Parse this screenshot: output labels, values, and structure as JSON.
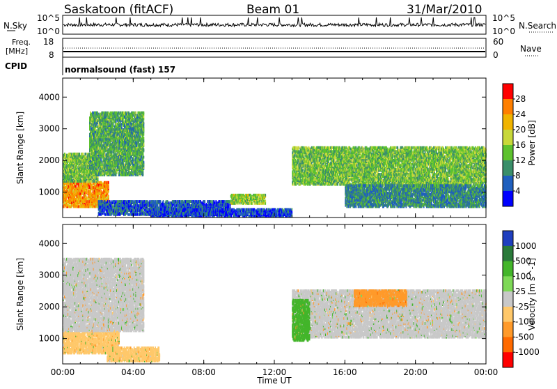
{
  "header": {
    "station": "Saskatoon (fitACF)",
    "beam": "Beam 01",
    "date": "31/Mar/2010"
  },
  "nsky_panel": {
    "left_label": "N.Sky",
    "left_ticks": [
      "10^5",
      "10^0"
    ],
    "right_label": "N.Search",
    "right_ticks": [
      "10^5",
      "10^0"
    ]
  },
  "freq_panel": {
    "left_label_1": "Freq.",
    "left_label_2": "[MHz]",
    "left_ticks": [
      "18",
      "8"
    ],
    "right_label": "Nave",
    "right_ticks": [
      "60",
      "0"
    ]
  },
  "cpid_panel": {
    "label": "CPID",
    "mode_text": "normalsound (fast) 157"
  },
  "chart_data": [
    {
      "type": "heatmap",
      "name": "power",
      "ylabel": "Slant Range [km]",
      "yticks": [
        1000,
        2000,
        3000,
        4000
      ],
      "ylim": [
        200,
        4600
      ],
      "colorbar_label": "Power [dB]",
      "colorbar_ticks": [
        4,
        8,
        12,
        16,
        20,
        24,
        28
      ],
      "colors": [
        "#0000ff",
        "#1f5fbe",
        "#3a8f6a",
        "#5ec22e",
        "#c8d83a",
        "#f0b400",
        "#ff7f00",
        "#ff0000"
      ],
      "regions": [
        {
          "t0": 0.0,
          "t1": 2.6,
          "r0": 500,
          "r1": 1300,
          "value": 24
        },
        {
          "t0": 0.0,
          "t1": 2.0,
          "r0": 1300,
          "r1": 2200,
          "value": 14
        },
        {
          "t0": 1.5,
          "t1": 4.6,
          "r0": 1500,
          "r1": 3500,
          "value": 12
        },
        {
          "t0": 2.0,
          "t1": 9.5,
          "r0": 250,
          "r1": 700,
          "value": 6
        },
        {
          "t0": 9.5,
          "t1": 11.5,
          "r0": 600,
          "r1": 900,
          "value": 16
        },
        {
          "t0": 5.0,
          "t1": 13.0,
          "r0": 200,
          "r1": 450,
          "value": 5
        },
        {
          "t0": 13.0,
          "t1": 24.0,
          "r0": 1200,
          "r1": 2400,
          "value": 14
        },
        {
          "t0": 16.0,
          "t1": 24.0,
          "r0": 500,
          "r1": 1200,
          "value": 9
        }
      ]
    },
    {
      "type": "heatmap",
      "name": "velocity",
      "ylabel": "Slant Range [km]",
      "yticks": [
        1000,
        2000,
        3000,
        4000
      ],
      "ylim": [
        200,
        4600
      ],
      "colorbar_label": "Velocity [m s^-1]",
      "colorbar_ticks": [
        1000,
        500,
        100,
        25,
        -25,
        -100,
        -500,
        -1000
      ],
      "colors": [
        "#1f3fbf",
        "#2a7a3a",
        "#43b52a",
        "#7ed957",
        "#c8c8c8",
        "#ffc86a",
        "#ff9a2a",
        "#ff6a00",
        "#ff0000"
      ],
      "regions": [
        {
          "t0": 0.0,
          "t1": 3.2,
          "r0": 500,
          "r1": 1200,
          "value": -100
        },
        {
          "t0": 0.0,
          "t1": 4.6,
          "r0": 1200,
          "r1": 3500,
          "value": 0
        },
        {
          "t0": 2.5,
          "t1": 5.5,
          "r0": 250,
          "r1": 700,
          "value": -100
        },
        {
          "t0": 13.0,
          "t1": 24.0,
          "r0": 1000,
          "r1": 2500,
          "value": 0
        },
        {
          "t0": 16.5,
          "t1": 19.5,
          "r0": 2000,
          "r1": 2500,
          "value": -300
        },
        {
          "t0": 13.0,
          "t1": 14.0,
          "r0": 900,
          "r1": 2200,
          "value": 100
        }
      ]
    }
  ],
  "x_axis": {
    "ticks": [
      "00:00",
      "04:00",
      "08:00",
      "12:00",
      "16:00",
      "20:00",
      "00:00"
    ],
    "label": "Time UT",
    "range_hours": [
      0,
      24
    ]
  }
}
